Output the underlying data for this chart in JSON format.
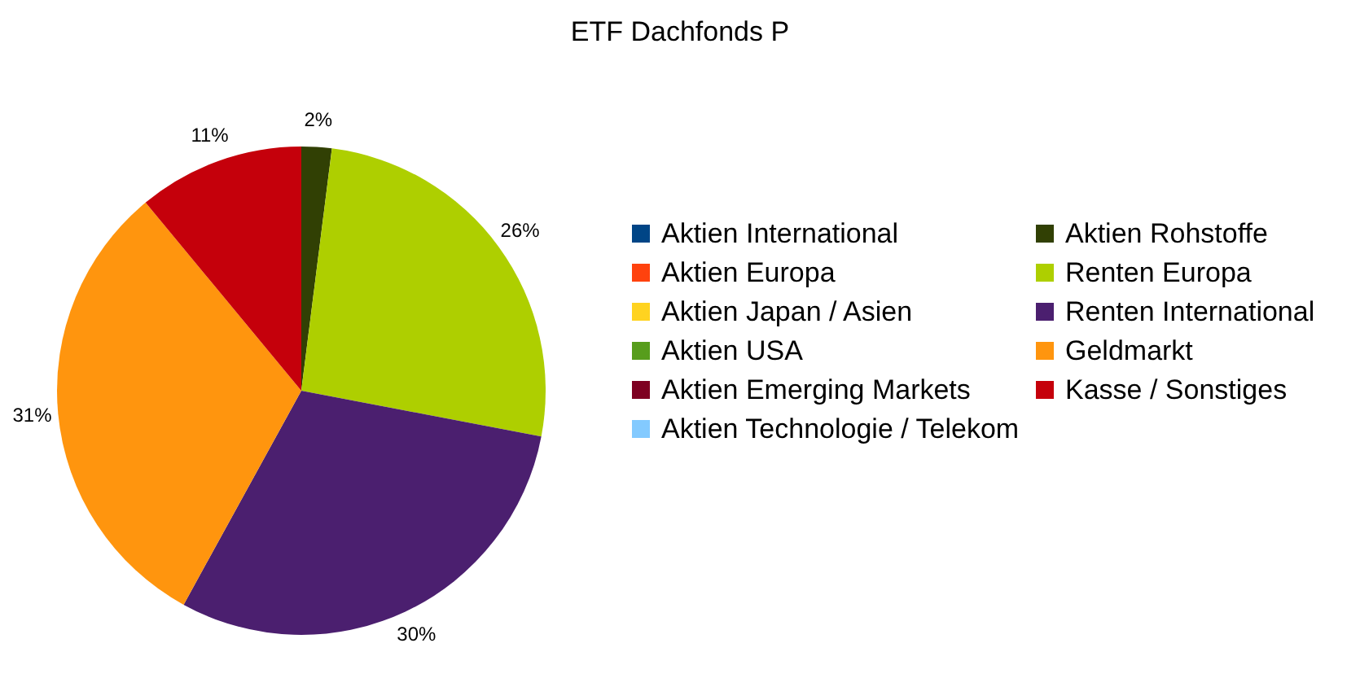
{
  "chart_data": {
    "type": "pie",
    "title": "ETF Dachfonds P",
    "categories": [
      "Aktien International",
      "Aktien Europa",
      "Aktien Japan / Asien",
      "Aktien USA",
      "Aktien Emerging Markets",
      "Aktien Technologie / Telekom",
      "Aktien Rohstoffe",
      "Renten Europa",
      "Renten International",
      "Geldmarkt",
      "Kasse / Sonstiges"
    ],
    "values": [
      0,
      0,
      0,
      0,
      0,
      0,
      2,
      26,
      30,
      31,
      11
    ],
    "value_labels": [
      null,
      null,
      null,
      null,
      null,
      null,
      "2%",
      "26%",
      "30%",
      "31%",
      "11%"
    ],
    "colors": [
      "#004586",
      "#ff420e",
      "#ffd320",
      "#579d1c",
      "#7e0021",
      "#83caff",
      "#314004",
      "#aecf00",
      "#4b1f6f",
      "#ff950e",
      "#c5000b"
    ],
    "legend": "right"
  }
}
